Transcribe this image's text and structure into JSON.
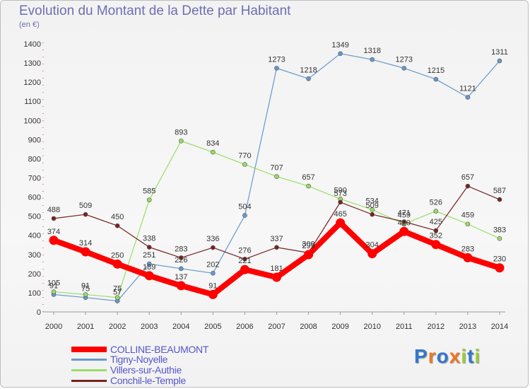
{
  "title": "Evolution du Montant de la Dette par Habitant",
  "subtitle": "(en €)",
  "logo": "Proxiti",
  "chart_data": {
    "type": "line",
    "title": "Evolution du Montant de la Dette par Habitant",
    "ylabel": "(en €)",
    "ylim": [
      0,
      1400
    ],
    "yticks": [
      0,
      100,
      200,
      300,
      400,
      500,
      600,
      700,
      800,
      900,
      1000,
      1100,
      1200,
      1300,
      1400
    ],
    "grid": false,
    "legend_position": "bottom-left",
    "x": [
      "2000",
      "2001",
      "2002",
      "2003",
      "2004",
      "2005",
      "2006",
      "2007",
      "2008",
      "2009",
      "2010",
      "2011",
      "2012",
      "2013",
      "2014"
    ],
    "series": [
      {
        "name": "COLLINE-BEAUMONT",
        "color": "#ff0000",
        "values": [
          374,
          314,
          250,
          189,
          137,
          91,
          221,
          181,
          299,
          465,
          304,
          420,
          352,
          283,
          230
        ]
      },
      {
        "name": "Tigny-Noyelle",
        "color": "#6699cc",
        "values": [
          91,
          75,
          57,
          251,
          226,
          202,
          504,
          1273,
          1218,
          1349,
          1318,
          1273,
          1215,
          1121,
          1311
        ]
      },
      {
        "name": "Villers-sur-Authie",
        "color": "#99dd66",
        "values": [
          105,
          91,
          75,
          585,
          893,
          834,
          770,
          707,
          657,
          590,
          534,
          459,
          526,
          459,
          383
        ]
      },
      {
        "name": "Conchil-le-Temple",
        "color": "#772222",
        "values": [
          488,
          509,
          450,
          338,
          283,
          336,
          276,
          337,
          309,
          573,
          509,
          471,
          425,
          657,
          587
        ]
      }
    ]
  }
}
